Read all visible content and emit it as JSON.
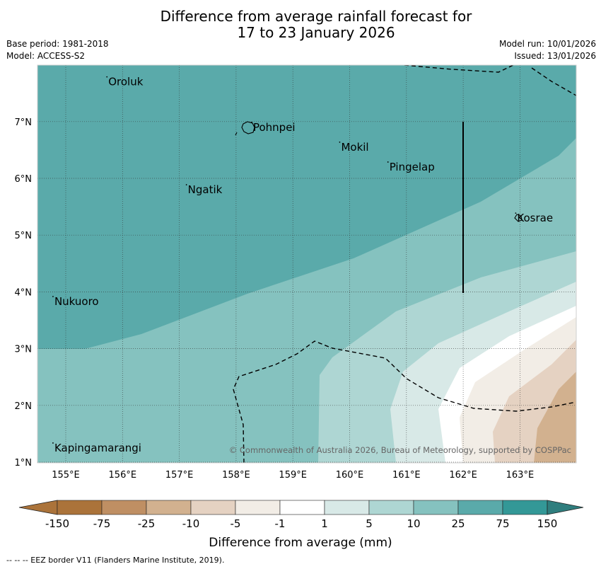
{
  "title": {
    "line1": "Difference from average rainfall forecast for",
    "line2": "17 to 23 January 2026"
  },
  "meta": {
    "base_period": "Base period: 1981-2018",
    "model": "Model: ACCESS-S2",
    "model_run": "Model run: 10/01/2026",
    "issued": "Issued: 13/01/2026"
  },
  "map": {
    "lon_ticks": [
      "155°E",
      "156°E",
      "157°E",
      "158°E",
      "159°E",
      "160°E",
      "161°E",
      "162°E",
      "163°E"
    ],
    "lat_ticks": [
      "7°N",
      "6°N",
      "5°N",
      "4°N",
      "3°N",
      "2°N",
      "1°N"
    ],
    "places": [
      {
        "name": "Oroluk",
        "lon": 155.75,
        "lat": 7.7
      },
      {
        "name": "Pohnpei",
        "lon": 158.3,
        "lat": 6.9
      },
      {
        "name": "Mokil",
        "lon": 159.85,
        "lat": 6.55
      },
      {
        "name": "Pingelap",
        "lon": 160.7,
        "lat": 6.2
      },
      {
        "name": "Ngatik",
        "lon": 157.15,
        "lat": 5.8
      },
      {
        "name": "Kosrae",
        "lon": 162.95,
        "lat": 5.3
      },
      {
        "name": "Nukuoro",
        "lon": 154.8,
        "lat": 3.83
      },
      {
        "name": "Kapingamarangi",
        "lon": 154.8,
        "lat": 1.25
      }
    ],
    "copyright": "© Commonwealth of Australia 2026, Bureau of Meteorology, supported by COSPPac"
  },
  "legend": {
    "tick_labels": [
      "-150",
      "-75",
      "-25",
      "-10",
      "-5",
      "-1",
      "1",
      "5",
      "10",
      "25",
      "75",
      "150"
    ],
    "colors": [
      "#ab733a",
      "#bf8f63",
      "#d2b18f",
      "#e5d2c2",
      "#f2ede6",
      "#ffffff",
      "#d8e9e7",
      "#aed6d3",
      "#85c2bf",
      "#5aaaaa",
      "#339897",
      "#2f7e7e"
    ],
    "title": "Difference from average (mm)"
  },
  "footer": {
    "eez_note": "--  --  -- EEZ border V11 (Flanders Marine Institute, 2019)."
  }
}
